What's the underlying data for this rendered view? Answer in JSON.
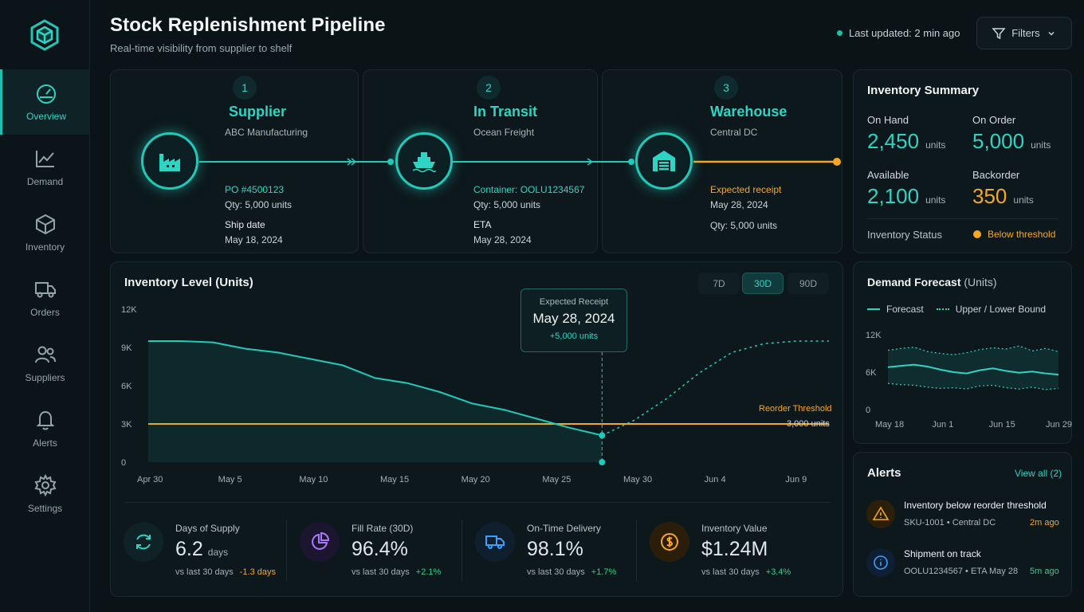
{
  "header": {
    "title": "Stock Replenishment Pipeline",
    "subtitle": "Real-time visibility from supplier to shelf",
    "last_updated": "Last updated: 2 min ago",
    "filters_label": "Filters"
  },
  "sidebar": {
    "items": [
      {
        "label": "Overview",
        "icon": "gauge-icon",
        "active": true
      },
      {
        "label": "Demand",
        "icon": "trend-chart-icon",
        "active": false
      },
      {
        "label": "Inventory",
        "icon": "box-icon",
        "active": false
      },
      {
        "label": "Orders",
        "icon": "truck-icon",
        "active": false
      },
      {
        "label": "Suppliers",
        "icon": "users-icon",
        "active": false
      },
      {
        "label": "Alerts",
        "icon": "bell-icon",
        "active": false
      },
      {
        "label": "Settings",
        "icon": "gear-icon",
        "active": false
      }
    ]
  },
  "pipeline": {
    "stages": [
      {
        "num": "1",
        "title": "Supplier",
        "sub": "ABC Manufacturing",
        "icon": "factory-icon",
        "line1": "PO #4500123",
        "line2": "Qty: 5,000 units",
        "line3": "Ship date",
        "line4": "May 18, 2024"
      },
      {
        "num": "2",
        "title": "In Transit",
        "sub": "Ocean Freight",
        "icon": "ship-icon",
        "line1": "Container: OOLU1234567",
        "line2": "Qty: 5,000 units",
        "line3": "ETA",
        "line4": "May 28, 2024"
      },
      {
        "num": "3",
        "title": "Warehouse",
        "sub": "Central DC",
        "icon": "warehouse-icon",
        "line1": "Expected receipt",
        "line2": "May 28, 2024",
        "line3": "Qty: 5,000 units",
        "line4": ""
      }
    ]
  },
  "summary": {
    "title": "Inventory Summary",
    "on_hand_label": "On Hand",
    "on_hand": "2,450",
    "on_order_label": "On Order",
    "on_order": "5,000",
    "available_label": "Available",
    "available": "2,100",
    "backorder_label": "Backorder",
    "backorder": "350",
    "unit": "units",
    "status_label": "Inventory Status",
    "status_value": "Below threshold",
    "accent": "#2fd4c4",
    "warning": "#f6a623"
  },
  "inventory_chart": {
    "title": "Inventory Level (Units)",
    "ranges": [
      "7D",
      "30D",
      "90D"
    ],
    "active_range": "30D",
    "y_ticks": [
      "12K",
      "9K",
      "6K",
      "3K",
      "0"
    ],
    "x_ticks": [
      "Apr 30",
      "May 5",
      "May 10",
      "May 15",
      "May 20",
      "May 25",
      "May 30",
      "Jun 4",
      "Jun 9"
    ],
    "threshold_label": "Reorder Threshold",
    "threshold_value": "3,000 units",
    "callout_title": "Expected Receipt",
    "callout_date": "May 28, 2024",
    "callout_delta": "+5,000 units"
  },
  "chart_data": [
    {
      "type": "line",
      "title": "Inventory Level (Units)",
      "xlabel": "",
      "ylabel": "",
      "ylim": [
        0,
        12000
      ],
      "series": [
        {
          "points": [
            [
              "Apr 30",
              9500
            ],
            [
              "May 2",
              9500
            ],
            [
              "May 4",
              9400
            ],
            [
              "May 6",
              8900
            ],
            [
              "May 8",
              8600
            ],
            [
              "May 10",
              8100
            ],
            [
              "May 12",
              7600
            ],
            [
              "May 14",
              6600
            ],
            [
              "May 16",
              6200
            ],
            [
              "May 18",
              5500
            ],
            [
              "May 20",
              4600
            ],
            [
              "May 22",
              4100
            ],
            [
              "May 24",
              3400
            ],
            [
              "May 26",
              2700
            ],
            [
              "May 28",
              2100
            ]
          ]
        },
        {
          "style": "dashed",
          "points": [
            [
              "May 28",
              2100
            ],
            [
              "May 30",
              3300
            ],
            [
              "Jun 1",
              5000
            ],
            [
              "Jun 3",
              7000
            ],
            [
              "Jun 5",
              8600
            ],
            [
              "Jun 7",
              9300
            ],
            [
              "Jun 9",
              9500
            ],
            [
              "Jun 11",
              9500
            ]
          ]
        },
        {
          "points": [
            [
              "Apr 30",
              3000
            ],
            [
              "Jun 11",
              3000
            ]
          ]
        }
      ],
      "annotations": [
        "Reorder Threshold",
        "3,000 units",
        "Expected Receipt May 28, 2024 +5,000 units"
      ]
    },
    {
      "type": "line",
      "title": "Demand Forecast (Units)",
      "ylim": [
        0,
        12000
      ],
      "x_ticks": [
        "May 18",
        "Jun 1",
        "Jun 15",
        "Jun 29"
      ],
      "y_ticks": [
        "12K",
        "6K",
        "0"
      ],
      "series": [
        {
          "name": "Forecast",
          "values": [
            6800,
            7000,
            7200,
            6900,
            6400,
            6000,
            5800,
            6300,
            6600,
            6200,
            5900,
            6100,
            5800,
            5600
          ]
        },
        {
          "name": "Upper / Lower Bound",
          "upper": [
            9500,
            9800,
            10000,
            9300,
            9000,
            8800,
            9100,
            9600,
            9900,
            9700,
            10200,
            9400,
            9800,
            9300
          ],
          "lower": [
            4200,
            4000,
            3900,
            3600,
            3400,
            3500,
            3300,
            3800,
            3900,
            3500,
            3300,
            3600,
            3200,
            3400
          ]
        }
      ]
    }
  ],
  "forecast": {
    "title": "Demand Forecast",
    "unit": "(Units)",
    "legend_forecast": "Forecast",
    "legend_bounds": "Upper / Lower Bound",
    "y_ticks": [
      "12K",
      "6K",
      "0"
    ],
    "x_ticks": [
      "May 18",
      "Jun 1",
      "Jun 15",
      "Jun 29"
    ]
  },
  "kpis": [
    {
      "label": "Days of Supply",
      "value": "6.2",
      "unit": "days",
      "cmp": "vs last 30 days",
      "delta": "-1.3 days",
      "icon": "refresh-icon",
      "color": "#2fd4c4"
    },
    {
      "label": "Fill Rate (30D)",
      "value": "96.4%",
      "unit": "",
      "cmp": "vs last 30 days",
      "delta": "+2.1%",
      "icon": "pie-icon",
      "color": "#a97cf5"
    },
    {
      "label": "On-Time Delivery",
      "value": "98.1%",
      "unit": "",
      "cmp": "vs last 30 days",
      "delta": "+1.7%",
      "icon": "truck-icon",
      "color": "#3aa0ff"
    },
    {
      "label": "Inventory Value",
      "value": "$1.24M",
      "unit": "",
      "cmp": "vs last 30 days",
      "delta": "+3.4%",
      "icon": "dollar-icon",
      "color": "#f6a623"
    }
  ],
  "alerts": {
    "title": "Alerts",
    "view_all": "View all (2)",
    "items": [
      {
        "title": "Inventory below reorder threshold",
        "meta1": "SKU-1001",
        "meta2": "Central DC",
        "time": "2m ago",
        "icon": "warning-icon"
      },
      {
        "title": "Shipment on track",
        "meta1": "OOLU1234567",
        "meta2": "ETA May 28",
        "time": "5m ago",
        "icon": "info-icon"
      }
    ]
  }
}
